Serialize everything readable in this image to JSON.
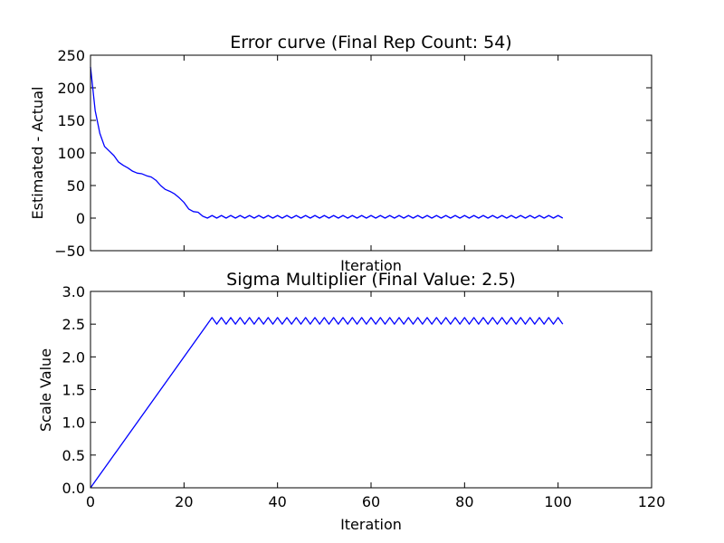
{
  "chart_data": [
    {
      "type": "line",
      "title": "Error curve (Final Rep Count: 54)",
      "xlabel": "Iteration",
      "ylabel": "Estimated - Actual",
      "xlim": [
        0,
        120
      ],
      "ylim": [
        -50,
        250
      ],
      "x_ticks": [
        "0",
        "20",
        "40",
        "60",
        "80",
        "100",
        "120"
      ],
      "y_ticks": [
        "250",
        "200",
        "150",
        "100",
        "50",
        "0",
        "−50"
      ],
      "x_tick_labels_visible": false,
      "grid": false,
      "legend": "none",
      "line_color": "#0000ff",
      "series": [
        {
          "x": [
            0,
            1,
            2,
            3,
            4,
            5,
            6,
            7,
            8,
            9,
            10,
            11,
            12,
            13,
            14,
            15,
            16,
            17,
            18,
            19,
            20,
            21,
            22,
            23,
            24,
            25,
            26,
            27,
            28,
            29,
            30,
            31,
            32,
            33,
            34,
            35,
            36,
            37,
            38,
            39,
            40,
            41,
            42,
            43,
            44,
            45,
            46,
            47,
            48,
            49,
            50,
            51,
            52,
            53,
            54,
            55,
            56,
            57,
            58,
            59,
            60,
            61,
            62,
            63,
            64,
            65,
            66,
            67,
            68,
            69,
            70,
            71,
            72,
            73,
            74,
            75,
            76,
            77,
            78,
            79,
            80,
            81,
            82,
            83,
            84,
            85,
            86,
            87,
            88,
            89,
            90,
            91,
            92,
            93,
            94,
            95,
            96,
            97,
            98,
            99,
            100,
            101
          ],
          "y": [
            232,
            165,
            130,
            110,
            103,
            96,
            86,
            81,
            77,
            72,
            69,
            68,
            65,
            63,
            58,
            50,
            44,
            41,
            37,
            31,
            24,
            14,
            10,
            9,
            3,
            0,
            4,
            0,
            4,
            0,
            4,
            0,
            4,
            0,
            4,
            0,
            4,
            0,
            4,
            0,
            4,
            0,
            4,
            0,
            4,
            0,
            4,
            0,
            4,
            0,
            4,
            0,
            4,
            0,
            4,
            0,
            4,
            0,
            4,
            0,
            4,
            0,
            4,
            0,
            4,
            0,
            4,
            0,
            4,
            0,
            4,
            0,
            4,
            0,
            4,
            0,
            4,
            0,
            4,
            0,
            4,
            0,
            4,
            0,
            4,
            0,
            4,
            0,
            4,
            0,
            4,
            0,
            4,
            0,
            4,
            0,
            4,
            0,
            4,
            0,
            4,
            0
          ]
        }
      ]
    },
    {
      "type": "line",
      "title": "Sigma Multiplier (Final Value: 2.5)",
      "xlabel": "Iteration",
      "ylabel": "Scale Value",
      "xlim": [
        0,
        120
      ],
      "ylim": [
        0,
        3
      ],
      "x_ticks": [
        "0",
        "20",
        "40",
        "60",
        "80",
        "100",
        "120"
      ],
      "y_ticks": [
        "3.0",
        "2.5",
        "2.0",
        "1.5",
        "1.0",
        "0.5",
        "0.0"
      ],
      "x_tick_labels_visible": true,
      "grid": false,
      "legend": "none",
      "line_color": "#0000ff",
      "series": [
        {
          "x": [
            0,
            26,
            27,
            28,
            29,
            30,
            31,
            32,
            33,
            34,
            35,
            36,
            37,
            38,
            39,
            40,
            41,
            42,
            43,
            44,
            45,
            46,
            47,
            48,
            49,
            50,
            51,
            52,
            53,
            54,
            55,
            56,
            57,
            58,
            59,
            60,
            61,
            62,
            63,
            64,
            65,
            66,
            67,
            68,
            69,
            70,
            71,
            72,
            73,
            74,
            75,
            76,
            77,
            78,
            79,
            80,
            81,
            82,
            83,
            84,
            85,
            86,
            87,
            88,
            89,
            90,
            91,
            92,
            93,
            94,
            95,
            96,
            97,
            98,
            99,
            100,
            101
          ],
          "y": [
            0,
            2.6,
            2.5,
            2.6,
            2.5,
            2.6,
            2.5,
            2.6,
            2.5,
            2.6,
            2.5,
            2.6,
            2.5,
            2.6,
            2.5,
            2.6,
            2.5,
            2.6,
            2.5,
            2.6,
            2.5,
            2.6,
            2.5,
            2.6,
            2.5,
            2.6,
            2.5,
            2.6,
            2.5,
            2.6,
            2.5,
            2.6,
            2.5,
            2.6,
            2.5,
            2.6,
            2.5,
            2.6,
            2.5,
            2.6,
            2.5,
            2.6,
            2.5,
            2.6,
            2.5,
            2.6,
            2.5,
            2.6,
            2.5,
            2.6,
            2.5,
            2.6,
            2.5,
            2.6,
            2.5,
            2.6,
            2.5,
            2.6,
            2.5,
            2.6,
            2.5,
            2.6,
            2.5,
            2.6,
            2.5,
            2.6,
            2.5,
            2.6,
            2.5,
            2.6,
            2.5,
            2.6,
            2.5,
            2.6,
            2.5,
            2.6,
            2.5
          ]
        }
      ]
    }
  ]
}
